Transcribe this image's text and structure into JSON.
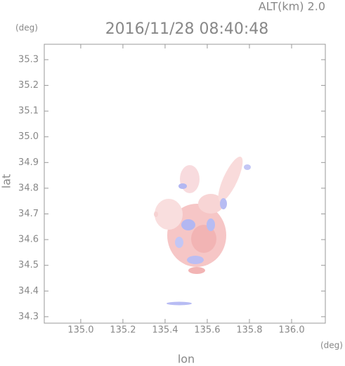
{
  "chart_data": {
    "type": "map",
    "title": "2016/11/28 08:40:48",
    "subtitle": "ALT(km) 2.0",
    "x_label": "lon",
    "x_unit": "(deg)",
    "y_label": "lat",
    "y_unit": "(deg)",
    "xlim": [
      134.827,
      136.16
    ],
    "ylim": [
      34.275,
      35.36
    ],
    "xticks": [
      {
        "value": 135.0,
        "label": "135.0"
      },
      135.2,
      135.4,
      135.6,
      135.8,
      {
        "value": 136.0,
        "label": "136.0"
      }
    ],
    "yticks": [
      34.3,
      34.4,
      34.5,
      34.6,
      34.7,
      34.8,
      34.9,
      {
        "value": 35.0,
        "label": "35.0"
      },
      35.1,
      35.2,
      35.3
    ]
  }
}
